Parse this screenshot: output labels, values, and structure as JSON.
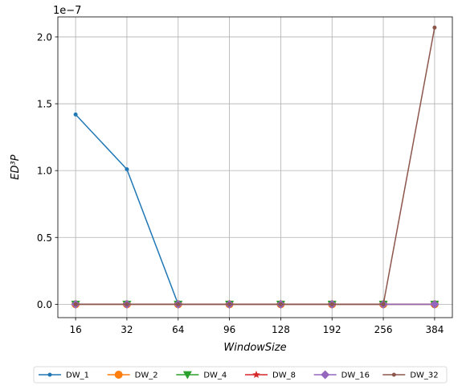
{
  "chart_data": {
    "type": "line",
    "title": "",
    "xlabel": "WindowSize",
    "ylabel": "ED³P",
    "y_offset_label": "1e−7",
    "y_scale": 1e-07,
    "categories": [
      "16",
      "32",
      "64",
      "96",
      "128",
      "192",
      "256",
      "384"
    ],
    "ylim": [
      -0.1,
      2.15
    ],
    "yticks": [
      0.0,
      0.5,
      1.0,
      1.5,
      2.0
    ],
    "ytick_labels": [
      "0.0",
      "0.5",
      "1.0",
      "1.5",
      "2.0"
    ],
    "grid": true,
    "legend_position": "bottom",
    "series": [
      {
        "name": "DW_1",
        "color": "#1f77b4",
        "marker": "point",
        "values": [
          1.42,
          1.01,
          0.0,
          0.0,
          0.0,
          0.0,
          0.0,
          0.0
        ]
      },
      {
        "name": "DW_2",
        "color": "#ff7f0e",
        "marker": "circle",
        "values": [
          0.0,
          0.0,
          0.0,
          0.0,
          0.0,
          0.0,
          0.0,
          0.0
        ]
      },
      {
        "name": "DW_4",
        "color": "#2ca02c",
        "marker": "triangle",
        "values": [
          0.0,
          0.0,
          0.0,
          0.0,
          0.0,
          0.0,
          0.0,
          0.0
        ]
      },
      {
        "name": "DW_8",
        "color": "#d62728",
        "marker": "star",
        "values": [
          0.0,
          0.0,
          0.0,
          0.0,
          0.0,
          0.0,
          0.0,
          0.0
        ]
      },
      {
        "name": "DW_16",
        "color": "#9467bd",
        "marker": "diamond",
        "values": [
          0.0,
          0.0,
          0.0,
          0.0,
          0.0,
          0.0,
          0.0,
          0.0
        ]
      },
      {
        "name": "DW_32",
        "color": "#8c564b",
        "marker": "point",
        "values": [
          0.0,
          0.0,
          0.0,
          0.0,
          0.0,
          0.0,
          0.0,
          2.07
        ]
      }
    ]
  }
}
